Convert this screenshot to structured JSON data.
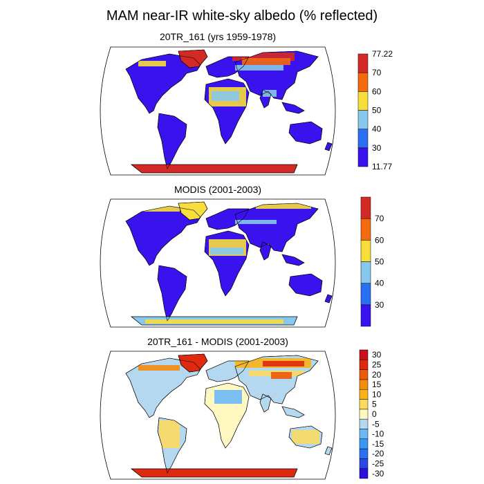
{
  "title": "MAM near-IR white-sky albedo (% reflected)",
  "panels": [
    {
      "title": "20TR_161 (yrs 1959-1978)",
      "colorbar": {
        "colors": [
          "#3a12ee",
          "#2a6ef2",
          "#86c8ee",
          "#f8de3a",
          "#f46a0e",
          "#d42a26"
        ],
        "labels": [
          "11.77",
          "30",
          "40",
          "50",
          "60",
          "70",
          "77.22"
        ]
      }
    },
    {
      "title": "MODIS (2001-2003)",
      "colorbar": {
        "colors": [
          "#3a12ee",
          "#2a6ef2",
          "#86c8ee",
          "#f8de3a",
          "#f46a0e",
          "#d42a26"
        ],
        "labels": [
          "",
          "30",
          "40",
          "50",
          "60",
          "70",
          ""
        ]
      }
    },
    {
      "title": "20TR_161 - MODIS (2001-2003)",
      "colorbar": {
        "colors": [
          "#2a10d8",
          "#2a48e6",
          "#2a70f0",
          "#3a98f4",
          "#6cb8f4",
          "#b4d8f0",
          "#fff8c0",
          "#fcdc60",
          "#f8b418",
          "#f48c0c",
          "#ec5a08",
          "#e02a10",
          "#c8101e"
        ],
        "labels": [
          "-30",
          "-25",
          "-20",
          "-15",
          "-10",
          "-5",
          "0",
          "5",
          "10",
          "15",
          "20",
          "25",
          "30"
        ]
      }
    }
  ]
}
